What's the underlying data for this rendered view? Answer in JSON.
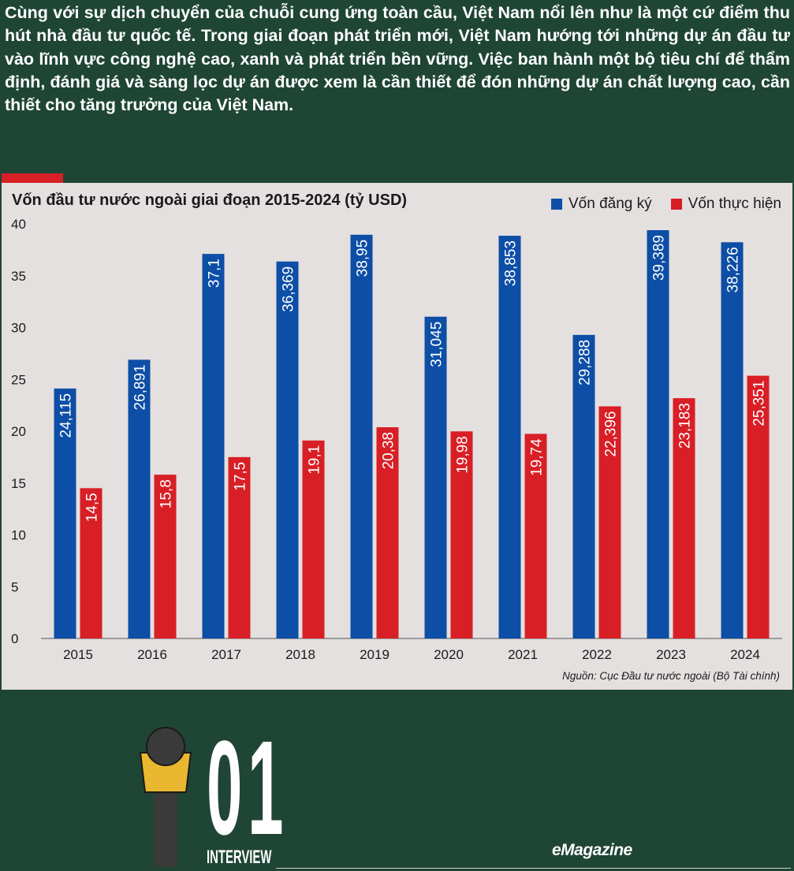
{
  "intro_text": "Cùng với sự dịch chuyển của chuỗi cung ứng toàn cầu, Việt Nam nổi lên như là một cứ điểm thu hút nhà đầu tư quốc tế. Trong giai đoạn phát triển mới, Việt Nam hướng tới những dự án đầu tư vào lĩnh vực công nghệ cao, xanh và phát triển bền vững. Việc ban hành một bộ tiêu chí để thẩm định, đánh giá và sàng lọc dự án được xem là cần thiết để đón những dự án chất lượng cao, cần thiết cho tăng trưởng của Việt Nam.",
  "chart_data": {
    "type": "bar",
    "title": "Vốn đầu tư nước ngoài giai đoạn 2015-2024 (tỷ USD)",
    "categories": [
      "2015",
      "2016",
      "2017",
      "2018",
      "2019",
      "2020",
      "2021",
      "2022",
      "2023",
      "2024"
    ],
    "series": [
      {
        "name": "Vốn đăng ký",
        "color": "#0d4ea6",
        "values": [
          24.115,
          26.891,
          37.1,
          36.369,
          38.95,
          31.045,
          38.853,
          29.288,
          39.389,
          38.226
        ],
        "labels": [
          "24,115",
          "26,891",
          "37,1",
          "36,369",
          "38,95",
          "31,045",
          "38,853",
          "29,288",
          "39,389",
          "38,226"
        ]
      },
      {
        "name": "Vốn thực hiện",
        "color": "#d81f26",
        "values": [
          14.5,
          15.8,
          17.5,
          19.1,
          20.38,
          19.98,
          19.74,
          22.396,
          23.183,
          25.351
        ],
        "labels": [
          "14,5",
          "15,8",
          "17,5",
          "19,1",
          "20,38",
          "19,98",
          "19,74",
          "22,396",
          "23,183",
          "25,351"
        ]
      }
    ],
    "ylim": [
      0,
      40
    ],
    "yticks": [
      0,
      5,
      10,
      15,
      20,
      25,
      30,
      35,
      40
    ],
    "grid": false,
    "legend_position": "top-right",
    "source": "Nguồn: Cục Đầu tư nước ngoài (Bộ Tài chính)"
  },
  "interview": {
    "number": "01",
    "label": "INTERVIEW"
  },
  "brand": "eMagazine",
  "colors": {
    "background": "#1f4535",
    "panel": "#e4e0df",
    "accent_red": "#d81f26",
    "mic_yellow": "#e9b730"
  }
}
